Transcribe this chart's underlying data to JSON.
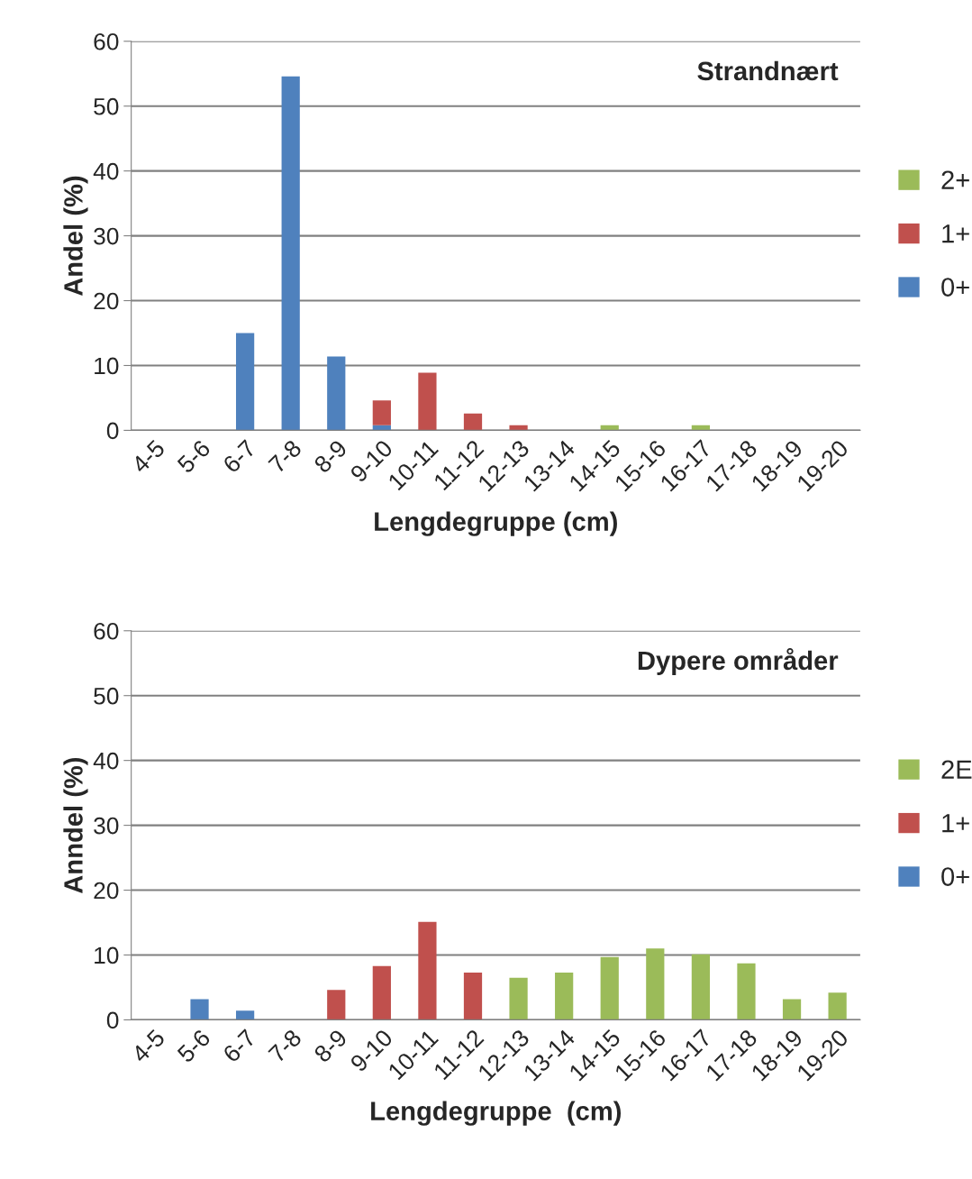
{
  "chart_data": [
    {
      "type": "bar",
      "title": "Strandnært",
      "xlabel": "Lengdegruppe (cm)",
      "ylabel": "Andel (%)",
      "categories": [
        "4-5",
        "5-6",
        "6-7",
        "7-8",
        "8-9",
        "9-10",
        "10-11",
        "11-12",
        "12-13",
        "13-14",
        "14-15",
        "15-16",
        "16-17",
        "17-18",
        "18-19",
        "19-20"
      ],
      "stacked": true,
      "ylim": [
        0,
        60
      ],
      "yticks": [
        0,
        10,
        20,
        30,
        40,
        50,
        60
      ],
      "grid": "y",
      "legend": "right",
      "series": [
        {
          "name": "0+",
          "color": "#4f81bd",
          "values": [
            null,
            null,
            15,
            54.6,
            11.4,
            0.8,
            null,
            null,
            null,
            null,
            null,
            null,
            null,
            null,
            null,
            null
          ]
        },
        {
          "name": "1+",
          "color": "#c0504d",
          "values": [
            null,
            null,
            null,
            null,
            null,
            3.8,
            8.9,
            2.6,
            0.8,
            null,
            null,
            null,
            null,
            null,
            null,
            null
          ]
        },
        {
          "name": "2+",
          "color": "#9bbb59",
          "values": [
            null,
            null,
            null,
            null,
            null,
            null,
            null,
            null,
            null,
            null,
            0.8,
            null,
            0.8,
            null,
            null,
            null
          ]
        }
      ]
    },
    {
      "type": "bar",
      "title": "Dypere områder",
      "xlabel": "Lengdegruppe  (cm)",
      "ylabel": "Anndel (%)",
      "categories": [
        "4-5",
        "5-6",
        "6-7",
        "7-8",
        "8-9",
        "9-10",
        "10-11",
        "11-12",
        "12-13",
        "13-14",
        "14-15",
        "15-16",
        "16-17",
        "17-18",
        "18-19",
        "19-20"
      ],
      "stacked": true,
      "ylim": [
        0,
        60
      ],
      "yticks": [
        0,
        10,
        20,
        30,
        40,
        50,
        60
      ],
      "grid": "y",
      "legend": "right",
      "series": [
        {
          "name": "0+",
          "color": "#4f81bd",
          "values": [
            null,
            3.2,
            1.4,
            null,
            null,
            null,
            null,
            null,
            null,
            null,
            null,
            null,
            null,
            null,
            null,
            null
          ]
        },
        {
          "name": "1+",
          "color": "#c0504d",
          "values": [
            null,
            null,
            null,
            null,
            4.6,
            8.3,
            15.1,
            7.3,
            null,
            null,
            null,
            null,
            null,
            null,
            null,
            null
          ]
        },
        {
          "name": "2E",
          "color": "#9bbb59",
          "values": [
            null,
            null,
            null,
            null,
            null,
            null,
            null,
            null,
            6.5,
            7.3,
            9.7,
            11,
            10.1,
            8.7,
            3.2,
            4.2
          ]
        }
      ]
    }
  ]
}
